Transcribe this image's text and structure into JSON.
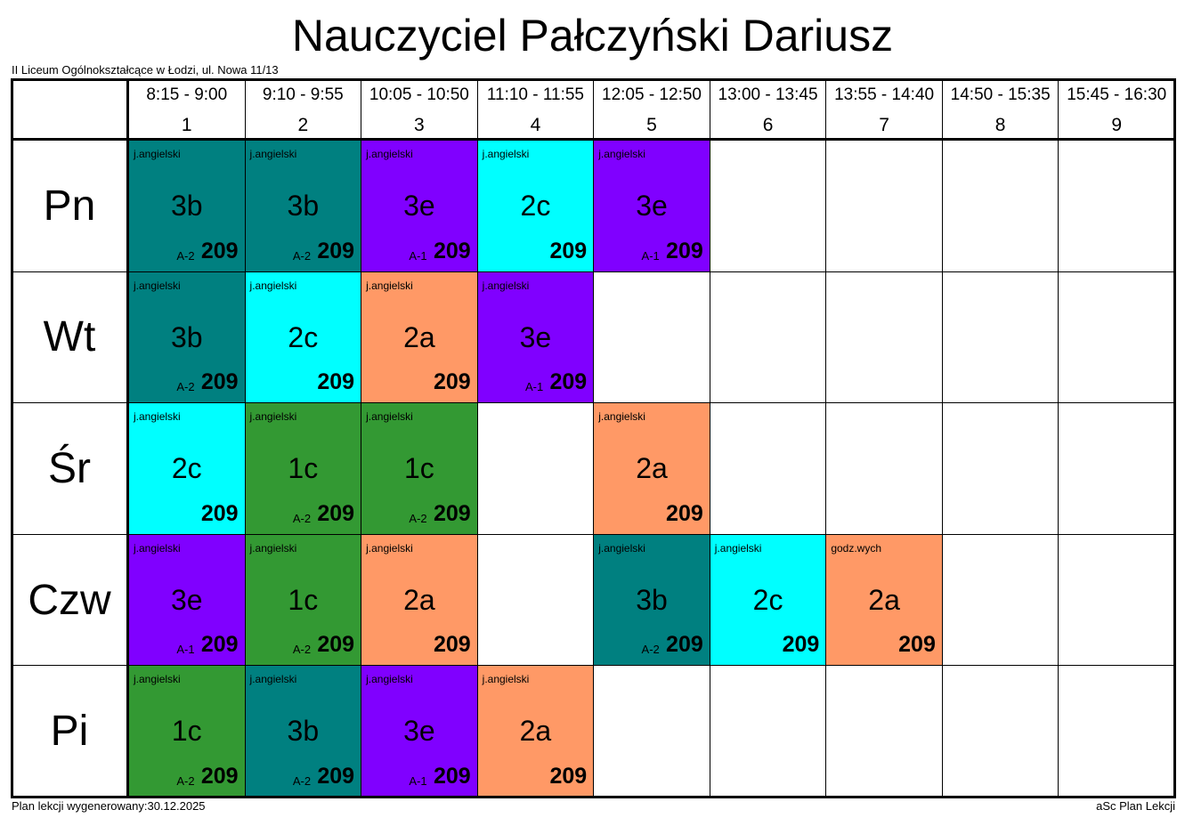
{
  "title": "Nauczyciel Pałczyński Dariusz",
  "school": "II Liceum Ogólnokształcące w Łodzi, ul. Nowa 11/13",
  "periods": [
    {
      "time": "8:15 - 9:00",
      "number": 1
    },
    {
      "time": "9:10 - 9:55",
      "number": 2
    },
    {
      "time": "10:05 - 10:50",
      "number": 3
    },
    {
      "time": "11:10 - 11:55",
      "number": 4
    },
    {
      "time": "12:05 - 12:50",
      "number": 5
    },
    {
      "time": "13:00 - 13:45",
      "number": 6
    },
    {
      "time": "13:55 - 14:40",
      "number": 7
    },
    {
      "time": "14:50 - 15:35",
      "number": 8
    },
    {
      "time": "15:45 - 16:30",
      "number": 9
    }
  ],
  "days": [
    {
      "name": "Pn",
      "cells": [
        {
          "subject": "j.angielski",
          "class": "3b",
          "group": "A-2",
          "room": 209,
          "color": "#008080"
        },
        {
          "subject": "j.angielski",
          "class": "3b",
          "group": "A-2",
          "room": 209,
          "color": "#008080"
        },
        {
          "subject": "j.angielski",
          "class": "3e",
          "group": "A-1",
          "room": 209,
          "color": "#8000ff"
        },
        {
          "subject": "j.angielski",
          "class": "2c",
          "room": 209,
          "color": "#00ffff"
        },
        {
          "subject": "j.angielski",
          "class": "3e",
          "group": "A-1",
          "room": 209,
          "color": "#8000ff"
        },
        null,
        null,
        null,
        null
      ]
    },
    {
      "name": "Wt",
      "cells": [
        {
          "subject": "j.angielski",
          "class": "3b",
          "group": "A-2",
          "room": 209,
          "color": "#008080"
        },
        {
          "subject": "j.angielski",
          "class": "2c",
          "room": 209,
          "color": "#00ffff"
        },
        {
          "subject": "j.angielski",
          "class": "2a",
          "room": 209,
          "color": "#ff9966"
        },
        {
          "subject": "j.angielski",
          "class": "3e",
          "group": "A-1",
          "room": 209,
          "color": "#8000ff"
        },
        null,
        null,
        null,
        null,
        null
      ]
    },
    {
      "name": "Śr",
      "cells": [
        {
          "subject": "j.angielski",
          "class": "2c",
          "room": 209,
          "color": "#00ffff"
        },
        {
          "subject": "j.angielski",
          "class": "1c",
          "group": "A-2",
          "room": 209,
          "color": "#339933"
        },
        {
          "subject": "j.angielski",
          "class": "1c",
          "group": "A-2",
          "room": 209,
          "color": "#339933"
        },
        null,
        {
          "subject": "j.angielski",
          "class": "2a",
          "room": 209,
          "color": "#ff9966"
        },
        null,
        null,
        null,
        null
      ]
    },
    {
      "name": "Czw",
      "cells": [
        {
          "subject": "j.angielski",
          "class": "3e",
          "group": "A-1",
          "room": 209,
          "color": "#8000ff"
        },
        {
          "subject": "j.angielski",
          "class": "1c",
          "group": "A-2",
          "room": 209,
          "color": "#339933"
        },
        {
          "subject": "j.angielski",
          "class": "2a",
          "room": 209,
          "color": "#ff9966"
        },
        null,
        {
          "subject": "j.angielski",
          "class": "3b",
          "group": "A-2",
          "room": 209,
          "color": "#008080"
        },
        {
          "subject": "j.angielski",
          "class": "2c",
          "room": 209,
          "color": "#00ffff"
        },
        {
          "subject": "godz.wych",
          "class": "2a",
          "room": 209,
          "color": "#ff9966"
        },
        null,
        null
      ]
    },
    {
      "name": "Pi",
      "cells": [
        {
          "subject": "j.angielski",
          "class": "1c",
          "group": "A-2",
          "room": 209,
          "color": "#339933"
        },
        {
          "subject": "j.angielski",
          "class": "3b",
          "group": "A-2",
          "room": 209,
          "color": "#008080"
        },
        {
          "subject": "j.angielski",
          "class": "3e",
          "group": "A-1",
          "room": 209,
          "color": "#8000ff"
        },
        {
          "subject": "j.angielski",
          "class": "2a",
          "room": 209,
          "color": "#ff9966"
        },
        null,
        null,
        null,
        null,
        null
      ]
    }
  ],
  "footer_left": "Plan lekcji wygenerowany:30.12.2025",
  "footer_right": "aSc Plan Lekcji"
}
